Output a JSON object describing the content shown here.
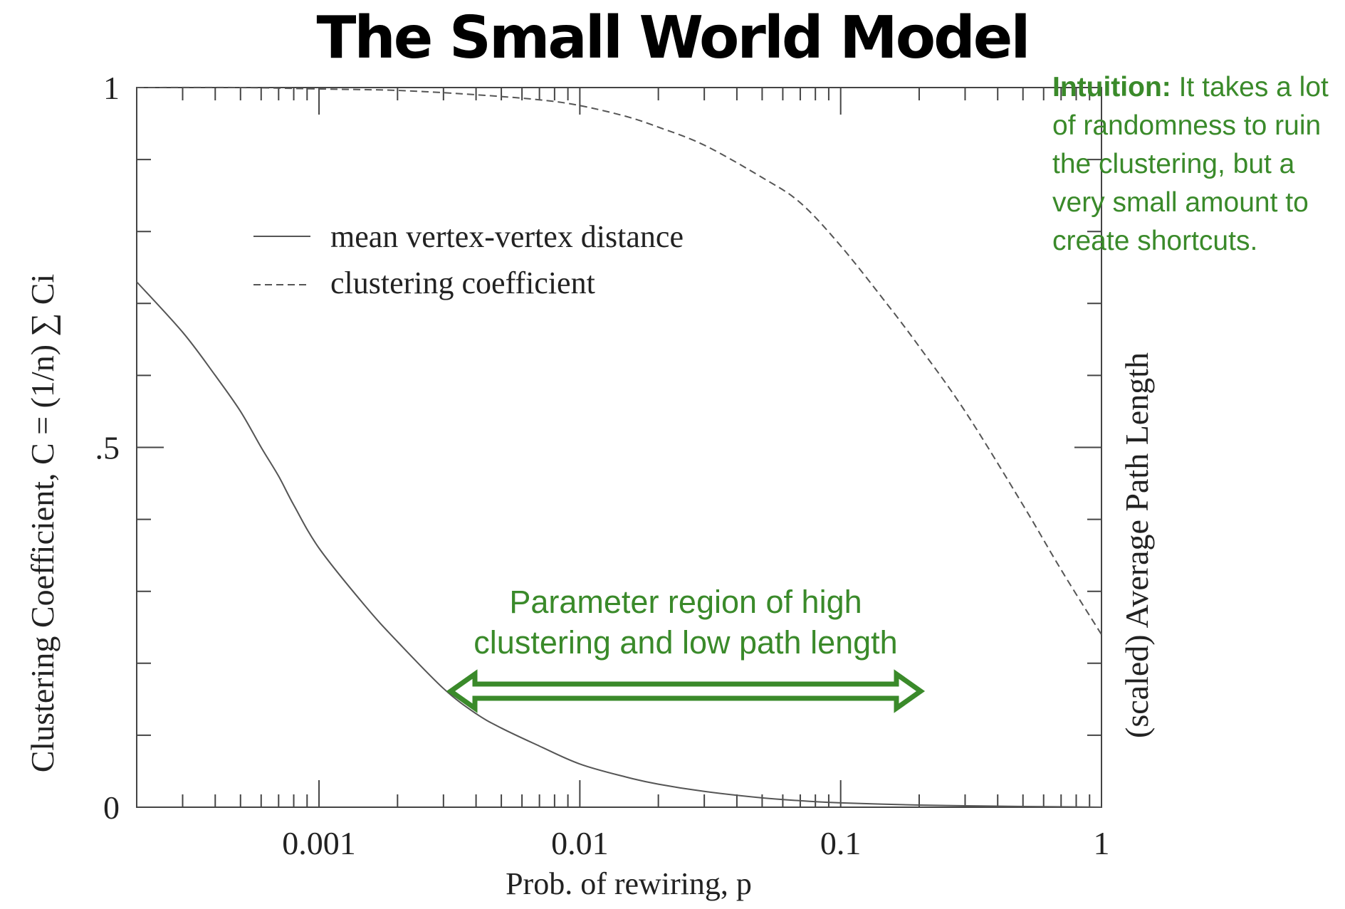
{
  "title": "The Small World Model",
  "annotation": {
    "lead": "Intuition:",
    "text": " It takes a lot of randomness to ruin the clustering, but a very small amount to create shortcuts."
  },
  "region_label": [
    "Parameter region of high",
    "clustering and low path length"
  ],
  "colors": {
    "annotation": "#3a8a2a",
    "arrow": "#3a8a2a",
    "curves": "#555555"
  },
  "chart_data": {
    "type": "line",
    "x_scale": "log",
    "xlim": [
      0.0002,
      1
    ],
    "ylim": [
      0,
      1
    ],
    "xlabel": "Prob. of rewiring, p",
    "ylabel": "Clustering Coefficient, C  = (1/n) ∑ Ci",
    "ylabel_right": "(scaled) Average Path Length",
    "x_tick_labels": [
      {
        "x": 0.001,
        "label": "0.001"
      },
      {
        "x": 0.01,
        "label": "0.01"
      },
      {
        "x": 0.1,
        "label": "0.1"
      },
      {
        "x": 1,
        "label": "1"
      }
    ],
    "y_tick_labels": [
      {
        "y": 0,
        "label": "0"
      },
      {
        "y": 0.5,
        "label": ".5"
      },
      {
        "y": 1,
        "label": "1"
      }
    ],
    "legend": {
      "placement": "upper-left",
      "entries": [
        {
          "name": "mean vertex-vertex distance",
          "style": "solid"
        },
        {
          "name": "clustering coefficient",
          "style": "dashed"
        }
      ]
    },
    "series": [
      {
        "name": "mean vertex-vertex distance",
        "style": "solid",
        "x": [
          0.0002,
          0.0003,
          0.0004,
          0.0005,
          0.0006,
          0.0007,
          0.0008,
          0.001,
          0.0015,
          0.002,
          0.003,
          0.004,
          0.005,
          0.007,
          0.01,
          0.015,
          0.02,
          0.03,
          0.05,
          0.07,
          0.1,
          0.2,
          0.3,
          0.5,
          1
        ],
        "y": [
          0.73,
          0.66,
          0.6,
          0.55,
          0.5,
          0.46,
          0.42,
          0.36,
          0.28,
          0.23,
          0.165,
          0.13,
          0.11,
          0.085,
          0.06,
          0.042,
          0.032,
          0.022,
          0.013,
          0.009,
          0.006,
          0.003,
          0.002,
          0.001,
          0
        ]
      },
      {
        "name": "clustering coefficient",
        "style": "dashed",
        "x": [
          0.0002,
          0.0005,
          0.001,
          0.002,
          0.004,
          0.007,
          0.01,
          0.015,
          0.02,
          0.03,
          0.05,
          0.07,
          0.1,
          0.15,
          0.2,
          0.3,
          0.5,
          0.7,
          1
        ],
        "y": [
          1,
          1,
          0.998,
          0.996,
          0.99,
          0.983,
          0.975,
          0.96,
          0.945,
          0.92,
          0.875,
          0.84,
          0.78,
          0.7,
          0.64,
          0.55,
          0.42,
          0.33,
          0.24
        ]
      }
    ]
  }
}
